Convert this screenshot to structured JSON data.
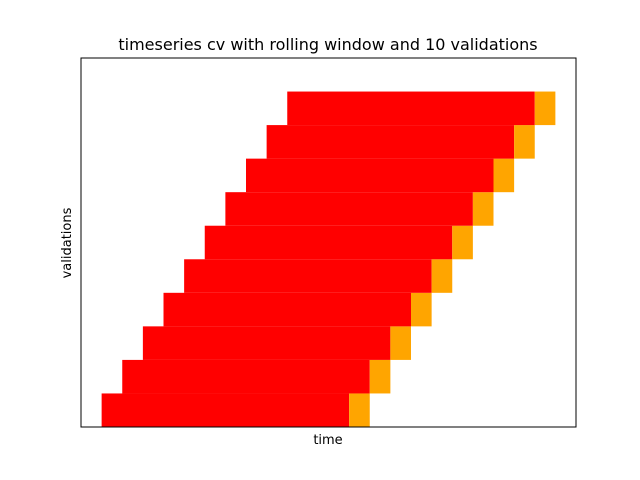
{
  "chart_data": {
    "type": "bar",
    "title": "timeseries cv with rolling window and 10 validations",
    "xlabel": "time",
    "ylabel": "validations",
    "x_ticks_visible": false,
    "y_ticks_visible": false,
    "train_color": "#ff0000",
    "validation_color": "#ffa500",
    "window_length": 12,
    "validation_length": 1,
    "xlim": [
      -1,
      23
    ],
    "ylim": [
      -0.5,
      10.5
    ],
    "validations": [
      {
        "index": 0,
        "train_start": 0,
        "train_end": 12,
        "val_start": 12,
        "val_end": 13
      },
      {
        "index": 1,
        "train_start": 1,
        "train_end": 13,
        "val_start": 13,
        "val_end": 14
      },
      {
        "index": 2,
        "train_start": 2,
        "train_end": 14,
        "val_start": 14,
        "val_end": 15
      },
      {
        "index": 3,
        "train_start": 3,
        "train_end": 15,
        "val_start": 15,
        "val_end": 16
      },
      {
        "index": 4,
        "train_start": 4,
        "train_end": 16,
        "val_start": 16,
        "val_end": 17
      },
      {
        "index": 5,
        "train_start": 5,
        "train_end": 17,
        "val_start": 17,
        "val_end": 18
      },
      {
        "index": 6,
        "train_start": 6,
        "train_end": 18,
        "val_start": 18,
        "val_end": 19
      },
      {
        "index": 7,
        "train_start": 7,
        "train_end": 19,
        "val_start": 19,
        "val_end": 20
      },
      {
        "index": 8,
        "train_start": 8,
        "train_end": 20,
        "val_start": 20,
        "val_end": 21
      },
      {
        "index": 9,
        "train_start": 9,
        "train_end": 21,
        "val_start": 21,
        "val_end": 22
      }
    ]
  }
}
